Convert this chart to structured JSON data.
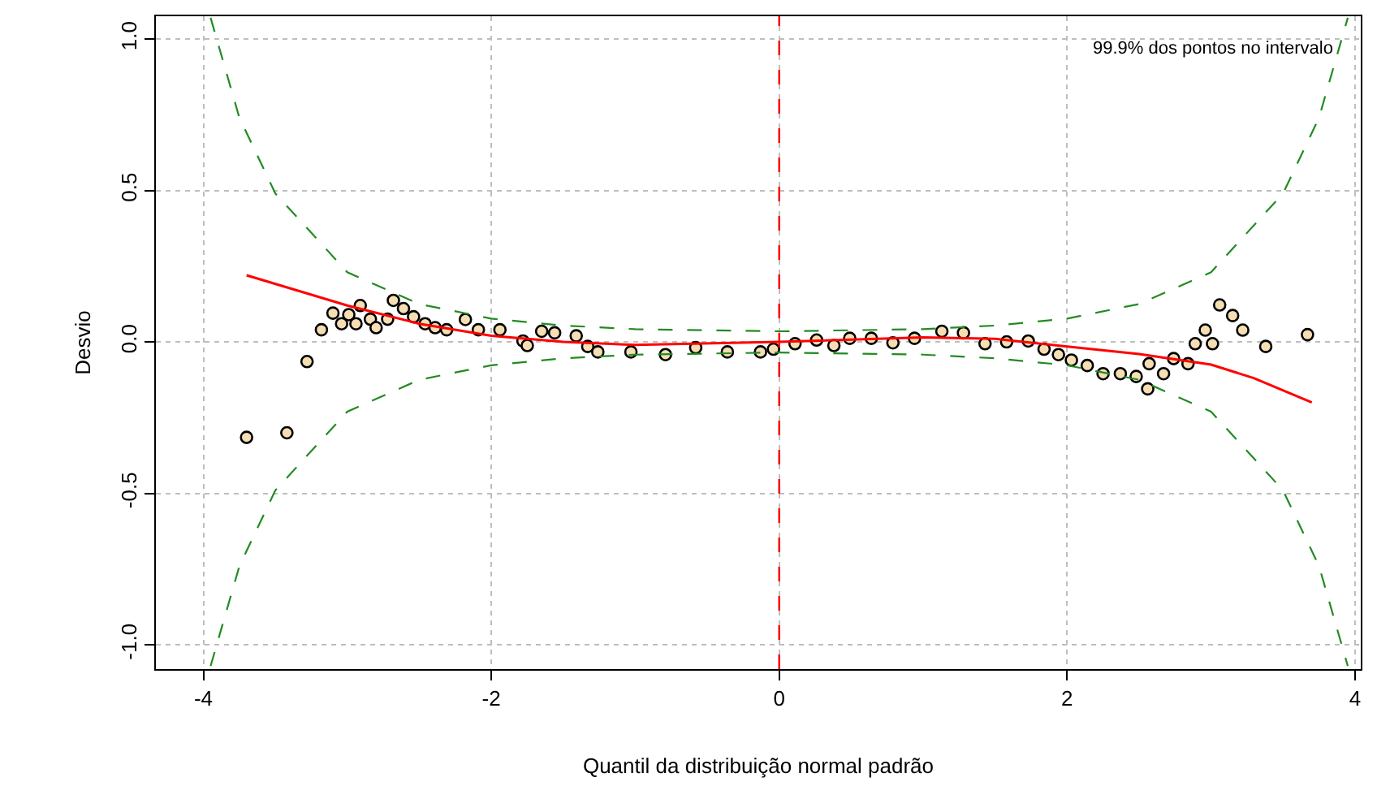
{
  "chart_data": {
    "type": "scatter",
    "xlabel": "Quantil da distribuição normal padrão",
    "ylabel": "Desvio",
    "annotations": [
      "99.9% dos pontos no intervalo"
    ],
    "xlim": [
      -4.33,
      4.04
    ],
    "xticks": [
      -4,
      -2,
      0,
      2,
      4
    ],
    "ylim": [
      -1.08,
      1.075
    ],
    "yticks": [
      {
        "value": -1,
        "label": "-1.0"
      },
      {
        "value": -0.5,
        "label": "-0.5"
      },
      {
        "value": 0,
        "label": "0.0"
      },
      {
        "value": 0.5,
        "label": "0.5"
      },
      {
        "value": 1,
        "label": "1.0"
      }
    ],
    "grid": true,
    "ref_lines": [
      {
        "axis": "x",
        "value": 0,
        "color": "#ff0000",
        "line_style": "dashed"
      }
    ],
    "series": [
      {
        "marker": "circle",
        "color": "#f5deb3",
        "x": [
          -3.7,
          -3.42,
          -3.28,
          -3.18,
          -3.1,
          -3.04,
          -2.99,
          -2.94,
          -2.91,
          -2.84,
          -2.8,
          -2.72,
          -2.68,
          -2.61,
          -2.54,
          -2.46,
          -2.39,
          -2.31,
          -2.18,
          -2.09,
          -1.94,
          -1.78,
          -1.75,
          -1.65,
          -1.56,
          -1.41,
          -1.33,
          -1.26,
          -1.03,
          -0.79,
          -0.58,
          -0.36,
          -0.13,
          -0.04,
          0.11,
          0.26,
          0.38,
          0.49,
          0.64,
          0.79,
          0.94,
          1.13,
          1.28,
          1.43,
          1.58,
          1.73,
          1.84,
          1.94,
          2.03,
          2.14,
          2.25,
          2.37,
          2.48,
          2.56,
          2.57,
          2.67,
          2.74,
          2.84,
          2.89,
          2.96,
          3.01,
          3.06,
          3.15,
          3.22,
          3.38,
          3.67
        ],
        "values": [
          -0.315,
          -0.3,
          -0.065,
          0.04,
          0.095,
          0.06,
          0.09,
          0.06,
          0.12,
          0.075,
          0.047,
          0.075,
          0.137,
          0.11,
          0.083,
          0.06,
          0.047,
          0.04,
          0.074,
          0.04,
          0.04,
          0.003,
          -0.012,
          0.035,
          0.03,
          0.02,
          -0.015,
          -0.033,
          -0.033,
          -0.042,
          -0.019,
          -0.033,
          -0.033,
          -0.024,
          -0.006,
          0.006,
          -0.012,
          0.012,
          0.012,
          -0.003,
          0.012,
          0.035,
          0.03,
          -0.006,
          0.0,
          0.003,
          -0.024,
          -0.042,
          -0.06,
          -0.078,
          -0.105,
          -0.105,
          -0.114,
          -0.155,
          -0.072,
          -0.105,
          -0.055,
          -0.072,
          -0.006,
          0.039,
          -0.006,
          0.122,
          0.087,
          0.039,
          -0.015,
          0.024
        ]
      },
      {
        "type": "line",
        "marker": "none",
        "line_style": "solid",
        "color": "#ff0000",
        "x": [
          -3.7,
          -3.0,
          -2.5,
          -2.0,
          -1.5,
          -1.0,
          0,
          1.0,
          1.5,
          2.0,
          2.5,
          3.0,
          3.3,
          3.7
        ],
        "values": [
          0.22,
          0.12,
          0.06,
          0.02,
          0.0,
          -0.01,
          0.0,
          0.015,
          0.01,
          -0.015,
          -0.04,
          -0.075,
          -0.12,
          -0.2
        ]
      },
      {
        "type": "line",
        "marker": "none",
        "line_style": "dashed",
        "color": "#228b22",
        "x": [
          -3.95,
          -3.75,
          -3.5,
          -3,
          -2.5,
          -2,
          -1.5,
          -1,
          0,
          1,
          1.5,
          2,
          2.5,
          3,
          3.5,
          3.75,
          3.95
        ],
        "values": [
          1.07,
          0.74,
          0.49,
          0.23,
          0.125,
          0.077,
          0.054,
          0.042,
          0.035,
          0.042,
          0.054,
          0.077,
          0.125,
          0.23,
          0.49,
          0.74,
          1.07
        ]
      },
      {
        "type": "line",
        "marker": "none",
        "line_style": "dashed",
        "color": "#228b22",
        "x": [
          -3.95,
          -3.75,
          -3.5,
          -3,
          -2.5,
          -2,
          -1.5,
          -1,
          0,
          1,
          1.5,
          2,
          2.5,
          3,
          3.5,
          3.75,
          3.95
        ],
        "values": [
          -1.07,
          -0.74,
          -0.49,
          -0.23,
          -0.125,
          -0.077,
          -0.054,
          -0.042,
          -0.035,
          -0.042,
          -0.054,
          -0.077,
          -0.125,
          -0.23,
          -0.49,
          -0.74,
          -1.07
        ]
      }
    ]
  }
}
